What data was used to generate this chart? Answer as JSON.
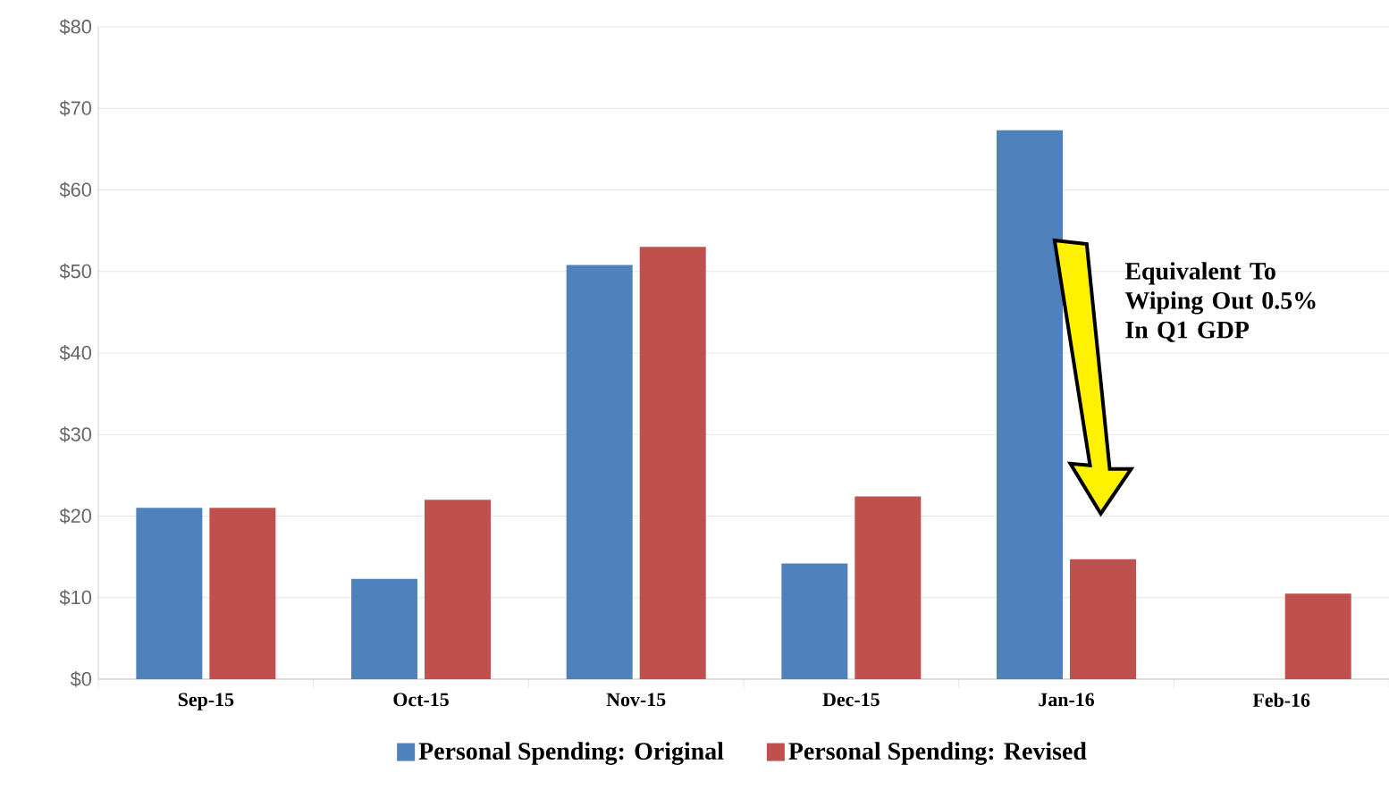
{
  "chart_data": {
    "type": "bar",
    "categories": [
      "Sep-15",
      "Oct-15",
      "Nov-15",
      "Dec-15",
      "Jan-16",
      "Feb-16"
    ],
    "series": [
      {
        "name": "Personal Spending: Original",
        "color": "#4f81bd",
        "values": [
          21,
          12.3,
          50.8,
          14.2,
          67.3,
          null
        ]
      },
      {
        "name": "Personal Spending: Revised",
        "color": "#c0504d",
        "values": [
          21,
          22,
          53,
          22.4,
          14.7,
          10.5
        ]
      }
    ],
    "ylim": [
      0,
      80
    ],
    "yticks": [
      {
        "value": 0,
        "label": "$0"
      },
      {
        "value": 10,
        "label": "$10"
      },
      {
        "value": 20,
        "label": "$20"
      },
      {
        "value": 30,
        "label": "$30"
      },
      {
        "value": 40,
        "label": "$40"
      },
      {
        "value": 50,
        "label": "$50"
      },
      {
        "value": 60,
        "label": "$60"
      },
      {
        "value": 70,
        "label": "$70"
      },
      {
        "value": 80,
        "label": "$80"
      }
    ],
    "grid": "y",
    "legend": "bottom",
    "annotations": [
      "Equivalent To Wiping Out 0.5% In Q1 GDP"
    ]
  }
}
